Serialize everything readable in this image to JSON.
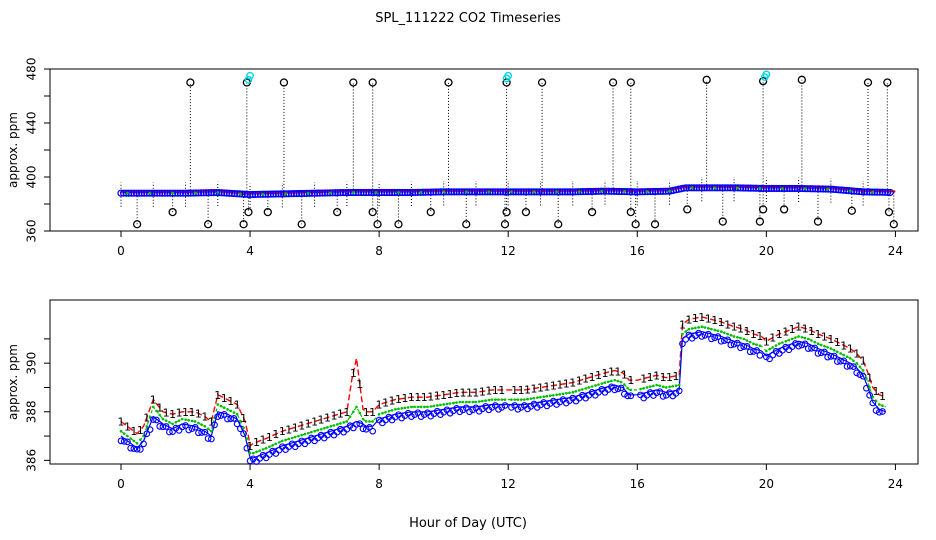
{
  "title": "SPL_111222  CO2 Timeseries",
  "xlabel": "Hour of Day (UTC)",
  "colors": {
    "raw": "#000000",
    "spike": "#00d8e8",
    "trace_red": "#ff0000",
    "trace_blue": "#0000ff",
    "trace_green": "#00c000"
  },
  "chart_data": [
    {
      "id": "top",
      "type": "scatter",
      "ylabel": "approx. ppm",
      "xlim": [
        -2.2,
        24.7
      ],
      "ylim": [
        360,
        480
      ],
      "xticks": [
        0,
        4,
        8,
        12,
        16,
        20,
        24
      ],
      "yticks": [
        360,
        400,
        440,
        480
      ],
      "yminor": [
        380,
        420,
        460
      ],
      "baseline": [
        [
          0,
          388
        ],
        [
          1,
          388
        ],
        [
          2,
          388
        ],
        [
          3,
          388.5
        ],
        [
          4,
          387
        ],
        [
          5,
          387.5
        ],
        [
          6,
          388
        ],
        [
          7,
          388.5
        ],
        [
          8,
          388.5
        ],
        [
          9,
          388.5
        ],
        [
          10,
          389
        ],
        [
          11,
          389
        ],
        [
          12,
          389
        ],
        [
          13,
          389
        ],
        [
          14,
          389
        ],
        [
          15,
          389.5
        ],
        [
          16,
          389
        ],
        [
          17,
          389.5
        ],
        [
          17.5,
          392
        ],
        [
          18,
          392
        ],
        [
          19,
          392
        ],
        [
          20,
          391.5
        ],
        [
          21,
          391.5
        ],
        [
          22,
          391
        ],
        [
          23,
          389
        ],
        [
          24,
          388.5
        ]
      ],
      "high_spikes": [
        [
          2.15,
          470
        ],
        [
          3.9,
          470
        ],
        [
          5.05,
          470
        ],
        [
          7.2,
          470
        ],
        [
          7.8,
          470
        ],
        [
          10.15,
          470
        ],
        [
          11.95,
          470
        ],
        [
          13.05,
          470
        ],
        [
          15.25,
          470
        ],
        [
          15.8,
          470
        ],
        [
          18.15,
          472
        ],
        [
          19.9,
          471
        ],
        [
          21.1,
          472
        ],
        [
          23.15,
          470
        ],
        [
          23.75,
          470
        ]
      ],
      "low_spikes": [
        [
          0.5,
          365
        ],
        [
          1.6,
          374
        ],
        [
          2.7,
          365
        ],
        [
          3.8,
          365
        ],
        [
          3.95,
          374
        ],
        [
          4.55,
          374
        ],
        [
          5.6,
          365
        ],
        [
          6.7,
          374
        ],
        [
          7.8,
          374
        ],
        [
          7.95,
          365
        ],
        [
          8.6,
          365
        ],
        [
          9.6,
          374
        ],
        [
          10.7,
          365
        ],
        [
          11.9,
          365
        ],
        [
          11.95,
          374
        ],
        [
          12.55,
          374
        ],
        [
          13.55,
          365
        ],
        [
          14.6,
          374
        ],
        [
          15.8,
          374
        ],
        [
          15.95,
          365
        ],
        [
          16.55,
          365
        ],
        [
          17.55,
          376
        ],
        [
          18.65,
          367
        ],
        [
          19.8,
          367
        ],
        [
          19.9,
          376
        ],
        [
          20.55,
          376
        ],
        [
          21.6,
          367
        ],
        [
          22.65,
          375
        ],
        [
          23.8,
          374
        ],
        [
          23.95,
          365
        ]
      ],
      "cyan_markers": [
        [
          3.95,
          472
        ],
        [
          4.0,
          475
        ],
        [
          11.95,
          473
        ],
        [
          12.0,
          475
        ],
        [
          19.95,
          474
        ],
        [
          20.0,
          476
        ]
      ]
    },
    {
      "id": "bottom",
      "type": "line",
      "ylabel": "approx. ppm",
      "xlim": [
        -2.2,
        24.7
      ],
      "ylim": [
        385.85,
        392.6
      ],
      "xticks": [
        0,
        4,
        8,
        12,
        16,
        20,
        24
      ],
      "yticks": [
        386,
        388,
        390
      ],
      "yminor": [
        387,
        389,
        391
      ],
      "series": [
        {
          "name": "blue",
          "x": [
            0,
            0.3,
            0.5,
            0.7,
            1.0,
            1.3,
            1.6,
            1.9,
            2.3,
            2.6,
            2.8,
            3.0,
            3.3,
            3.6,
            3.85,
            3.95,
            4.0,
            4.1,
            4.5,
            5.0,
            5.5,
            6.0,
            6.5,
            7.0,
            7.3,
            7.5,
            7.6,
            7.8,
            8.0,
            8.5,
            9.0,
            9.5,
            10.0,
            10.5,
            11.0,
            11.5,
            11.9,
            12.0,
            12.5,
            13.0,
            13.5,
            14.0,
            14.5,
            15.0,
            15.3,
            15.55,
            15.75,
            16.0,
            16.3,
            16.6,
            16.9,
            17.3,
            17.4,
            17.6,
            18.0,
            18.3,
            18.6,
            19.0,
            19.3,
            19.6,
            19.85,
            20.0,
            20.4,
            20.8,
            21.0,
            21.3,
            21.6,
            22.0,
            22.3,
            22.6,
            22.8,
            23.0,
            23.15,
            23.3,
            23.5,
            23.7
          ],
          "y": [
            387.0,
            386.7,
            386.5,
            386.8,
            387.8,
            387.5,
            387.3,
            387.5,
            387.4,
            387.2,
            387.0,
            388.0,
            387.9,
            387.7,
            387.0,
            386.4,
            386.1,
            386.1,
            386.3,
            386.6,
            386.8,
            387.0,
            387.2,
            387.4,
            387.6,
            387.5,
            387.4,
            387.4,
            387.7,
            387.9,
            388.0,
            388.0,
            388.1,
            388.2,
            388.2,
            388.3,
            388.3,
            388.3,
            388.3,
            388.4,
            388.5,
            388.6,
            388.8,
            389.0,
            389.1,
            389.0,
            388.7,
            388.7,
            388.8,
            388.9,
            388.8,
            388.9,
            391.0,
            391.2,
            391.3,
            391.2,
            391.1,
            390.9,
            390.8,
            390.6,
            390.5,
            390.3,
            390.6,
            390.8,
            390.9,
            390.8,
            390.6,
            390.4,
            390.2,
            390.0,
            389.8,
            389.5,
            389.0,
            388.4,
            388.1,
            388.0
          ]
        },
        {
          "name": "green",
          "x": [
            0,
            0.3,
            0.5,
            0.7,
            1.0,
            1.3,
            1.6,
            1.9,
            2.3,
            2.6,
            2.8,
            3.0,
            3.3,
            3.6,
            3.85,
            3.95,
            4.0,
            4.1,
            4.5,
            5.0,
            5.5,
            6.0,
            6.5,
            7.0,
            7.3,
            7.5,
            7.6,
            7.8,
            8.0,
            8.5,
            9.0,
            9.5,
            10.0,
            10.5,
            11.0,
            11.5,
            11.9,
            12.0,
            12.5,
            13.0,
            13.5,
            14.0,
            14.5,
            15.0,
            15.3,
            15.55,
            15.75,
            16.0,
            16.3,
            16.6,
            16.9,
            17.3,
            17.4,
            17.6,
            18.0,
            18.3,
            18.6,
            19.0,
            19.3,
            19.6,
            19.85,
            20.0,
            20.4,
            20.8,
            21.0,
            21.3,
            21.6,
            22.0,
            22.3,
            22.6,
            22.8,
            23.0,
            23.15,
            23.3,
            23.5,
            23.7
          ],
          "y": [
            387.2,
            386.9,
            386.7,
            387.0,
            388.2,
            387.7,
            387.5,
            387.7,
            387.6,
            387.4,
            387.2,
            388.3,
            388.1,
            387.9,
            387.2,
            386.6,
            386.3,
            386.3,
            386.5,
            386.8,
            387.0,
            387.2,
            387.4,
            387.6,
            388.2,
            387.7,
            387.6,
            387.6,
            387.9,
            388.1,
            388.2,
            388.2,
            388.3,
            388.4,
            388.4,
            388.5,
            388.5,
            388.5,
            388.5,
            388.6,
            388.7,
            388.8,
            389.0,
            389.2,
            389.3,
            389.2,
            388.9,
            388.9,
            389.0,
            389.1,
            389.0,
            389.1,
            391.2,
            391.4,
            391.5,
            391.4,
            391.3,
            391.1,
            391.0,
            390.8,
            390.7,
            390.5,
            390.8,
            391.0,
            391.1,
            391.0,
            390.8,
            390.6,
            390.4,
            390.2,
            390.0,
            389.7,
            389.2,
            388.6,
            388.3,
            388.2
          ]
        },
        {
          "name": "red",
          "x": [
            0,
            0.3,
            0.5,
            0.7,
            1.0,
            1.3,
            1.6,
            1.9,
            2.3,
            2.6,
            2.8,
            3.0,
            3.3,
            3.6,
            3.85,
            3.95,
            4.0,
            4.1,
            4.5,
            5.0,
            5.5,
            6.0,
            6.5,
            7.0,
            7.15,
            7.3,
            7.5,
            7.6,
            7.8,
            8.0,
            8.5,
            9.0,
            9.5,
            10.0,
            10.5,
            11.0,
            11.5,
            11.9,
            12.0,
            12.5,
            13.0,
            13.5,
            14.0,
            14.5,
            15.0,
            15.3,
            15.55,
            15.75,
            16.0,
            16.3,
            16.6,
            16.9,
            17.3,
            17.4,
            17.6,
            18.0,
            18.3,
            18.6,
            19.0,
            19.3,
            19.6,
            19.85,
            20.0,
            20.4,
            20.8,
            21.0,
            21.3,
            21.6,
            22.0,
            22.3,
            22.6,
            22.8,
            23.0,
            23.15,
            23.3,
            23.5,
            23.7
          ],
          "y": [
            387.6,
            387.3,
            387.1,
            387.4,
            388.5,
            388.0,
            387.9,
            388.0,
            388.0,
            387.8,
            387.6,
            388.7,
            388.5,
            388.3,
            387.6,
            387.0,
            386.6,
            386.7,
            386.9,
            387.2,
            387.4,
            387.6,
            387.8,
            388.0,
            389.3,
            390.2,
            388.1,
            388.0,
            388.0,
            388.3,
            388.5,
            388.6,
            388.6,
            388.7,
            388.8,
            388.8,
            388.9,
            388.9,
            388.9,
            388.9,
            389.0,
            389.1,
            389.2,
            389.4,
            389.6,
            389.7,
            389.6,
            389.3,
            389.3,
            389.4,
            389.5,
            389.4,
            389.5,
            391.6,
            391.8,
            391.9,
            391.8,
            391.7,
            391.5,
            391.4,
            391.2,
            391.1,
            390.9,
            391.2,
            391.4,
            391.5,
            391.4,
            391.2,
            391.0,
            390.8,
            390.6,
            390.4,
            390.1,
            389.6,
            389.0,
            388.7,
            388.6
          ]
        }
      ],
      "gaps": [
        [
          7.85,
          7.95
        ],
        [
          11.9,
          12.0
        ],
        [
          15.85,
          16.0
        ],
        [
          19.9,
          20.0
        ]
      ]
    }
  ]
}
